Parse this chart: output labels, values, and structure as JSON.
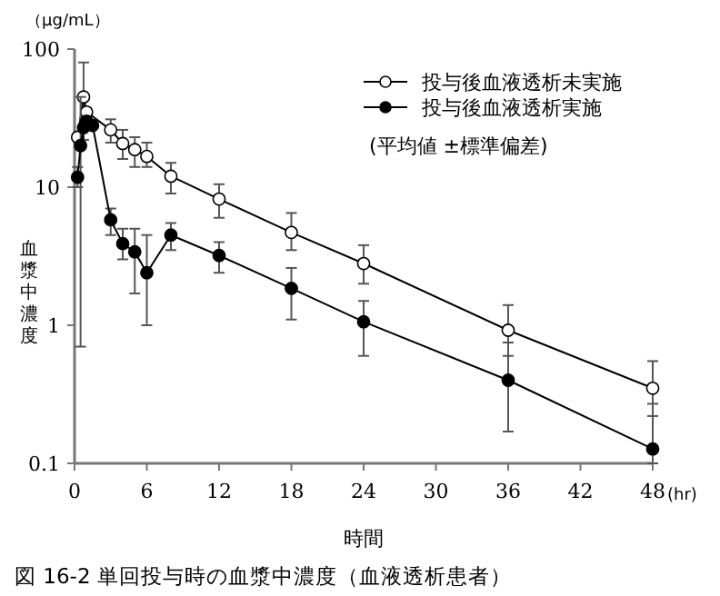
{
  "chart_data": {
    "type": "line",
    "title": "図 16-2 単回投与時の血漿中濃度（血液透析患者）",
    "xlabel": "時間",
    "ylabel": "血漿中濃度",
    "annotations": [
      "（μg/mL）",
      "(hr)",
      "(平均値 ±標準偏差)"
    ],
    "x": [
      0.25,
      0.5,
      0.75,
      1,
      1.5,
      2,
      3,
      4,
      5,
      6,
      8,
      12,
      18,
      24,
      36,
      48
    ],
    "series": [
      {
        "name": "投与後血液透析未実施",
        "color": "#000000",
        "values": [
          23,
          null,
          45,
          35,
          null,
          null,
          26,
          20.7,
          18.7,
          16.7,
          12,
          8.2,
          4.7,
          2.8,
          0.92,
          0.35
        ],
        "errors": [
          null,
          null,
          [
            22,
            80
          ],
          null,
          null,
          null,
          [
            21,
            31
          ],
          [
            16,
            26
          ],
          [
            14,
            23
          ],
          [
            14,
            21
          ],
          [
            9,
            15
          ],
          [
            6,
            10.5
          ],
          [
            3.5,
            6.5
          ],
          [
            2,
            3.8
          ],
          [
            0.6,
            1.4
          ],
          [
            0.22,
            0.55
          ]
        ]
      },
      {
        "name": "投与後血液透析実施",
        "color": "#000000",
        "values": [
          11.8,
          20,
          27,
          30,
          28,
          null,
          5.8,
          3.9,
          3.4,
          2.4,
          4.5,
          3.2,
          1.85,
          1.06,
          0.4,
          0.127
        ],
        "errors": [
          [
            10,
            14
          ],
          [
            0.7,
            45
          ],
          null,
          null,
          null,
          null,
          [
            4.5,
            7
          ],
          [
            3,
            5
          ],
          [
            1.7,
            5
          ],
          [
            1,
            4.5
          ],
          [
            3.5,
            5.5
          ],
          [
            2.4,
            4
          ],
          [
            1.1,
            2.6
          ],
          [
            0.6,
            1.5
          ],
          [
            0.17,
            0.75
          ],
          [
            0.1,
            0.27
          ]
        ]
      }
    ],
    "xlim": [
      0,
      48
    ],
    "xticks": [
      0,
      6,
      12,
      18,
      24,
      30,
      36,
      42,
      48
    ],
    "ylim": [
      0.1,
      100
    ],
    "yticks": [
      0.1,
      1,
      10,
      100
    ],
    "log": "y",
    "grid": false,
    "legend": "top right",
    "line_style": "solid",
    "marker": "circle"
  }
}
